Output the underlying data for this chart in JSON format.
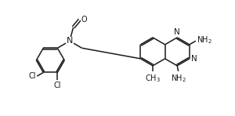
{
  "bg_color": "#ffffff",
  "line_color": "#1a1a1a",
  "line_width": 1.1,
  "font_size": 7.0,
  "figsize": [
    3.0,
    1.48
  ],
  "dpi": 100,
  "xlim": [
    0,
    10
  ],
  "ylim": [
    0,
    5
  ]
}
